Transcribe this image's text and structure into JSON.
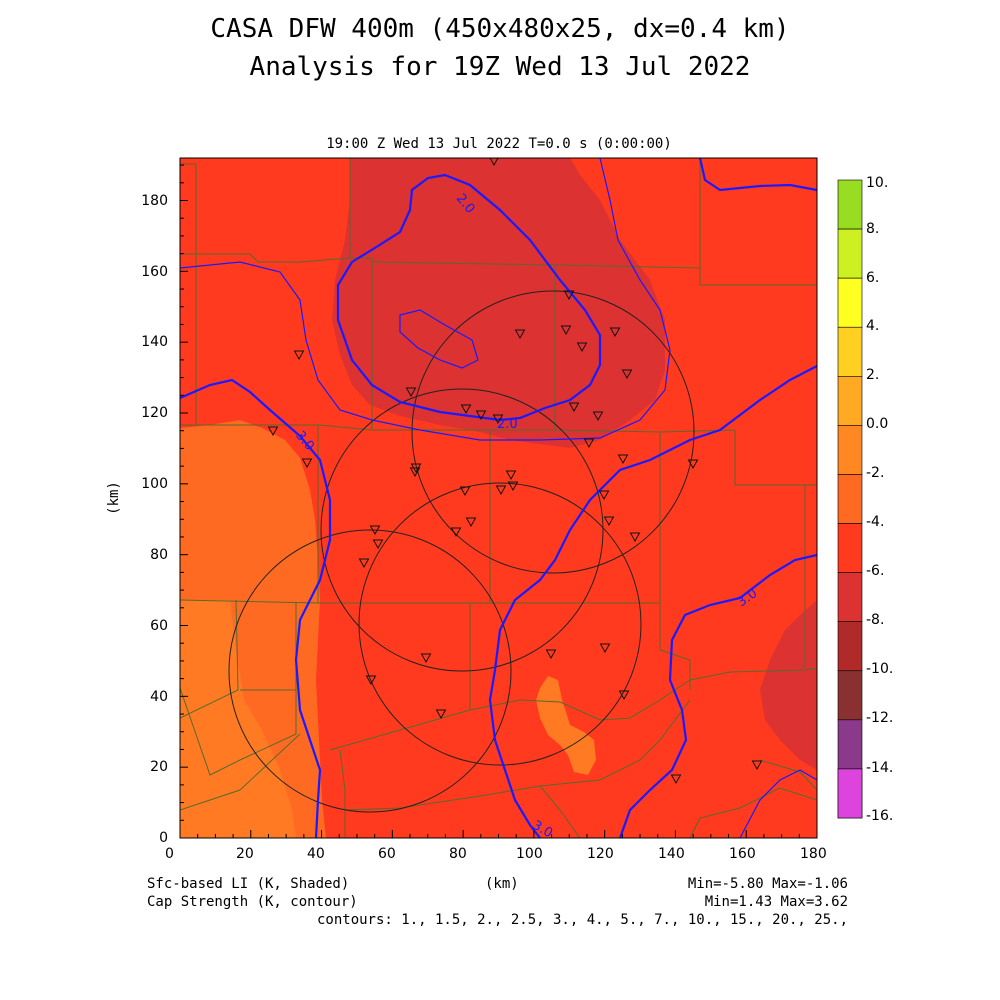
{
  "title": {
    "line1": "CASA DFW 400m (450x480x25, dx=0.4 km)",
    "line2": "Analysis for 19Z Wed 13 Jul 2022"
  },
  "panel": {
    "header": "19:00 Z Wed 13 Jul 2022    T=0.0 s (0:00:00)"
  },
  "axes": {
    "x_label": "(km)",
    "y_label": "(km)",
    "x_ticks": [
      "0",
      "20",
      "40",
      "60",
      "80",
      "100",
      "120",
      "140",
      "160",
      "180"
    ],
    "y_ticks": [
      "0",
      "20",
      "40",
      "60",
      "80",
      "100",
      "120",
      "140",
      "160",
      "180"
    ],
    "x_range": [
      0,
      180
    ],
    "y_range": [
      0,
      192
    ]
  },
  "colorbar": {
    "labels": [
      "10.",
      "8.",
      "6.",
      "4.",
      "2.",
      "0.0",
      "-2.",
      "-4.",
      "-6.",
      "-8.",
      "-10.",
      "-12.",
      "-14.",
      "-16."
    ],
    "colors": [
      "#99dd22",
      "#ccf022",
      "#ffff22",
      "#ffd022",
      "#ffaa22",
      "#ff8822",
      "#ff6a22",
      "#ff3a1e",
      "#dc3232",
      "#b02a2a",
      "#8b3030",
      "#8b3a8b",
      "#bb33bb",
      "#dd44dd"
    ]
  },
  "contour_labels": {
    "a": "2.0",
    "b": "2.0",
    "c": "3.0",
    "d": "3.0",
    "e": "3.0"
  },
  "footer": {
    "field1": "Sfc-based LI (K, Shaded)",
    "field2": "Cap Strength (K, contour)",
    "x_unit": "(km)",
    "stats1": "Min=-5.80 Max=-1.06",
    "stats2": "Min=1.43 Max=3.62",
    "contours": "contours: 1., 1.5, 2., 2.5, 3., 4., 5., 7., 10., 15., 20., 25.,"
  },
  "colors": {
    "background_field": "#ff3a1e",
    "warm_region": "#ff6a22",
    "cool_region": "#dc3232",
    "contour": "#1a1aff",
    "county_lines": "#556b2f"
  }
}
